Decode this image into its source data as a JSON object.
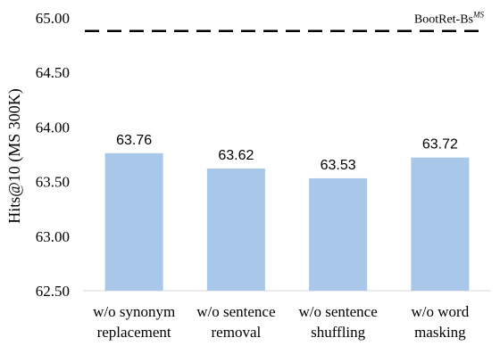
{
  "chart_data": {
    "type": "bar",
    "categories": [
      [
        "w/o synonym",
        "replacement"
      ],
      [
        "w/o sentence",
        "removal"
      ],
      [
        "w/o sentence",
        "shuffling"
      ],
      [
        "w/o word",
        "masking"
      ]
    ],
    "values": [
      63.76,
      63.62,
      63.53,
      63.72
    ],
    "value_labels": [
      "63.76",
      "63.62",
      "63.53",
      "63.72"
    ],
    "ylabel": "Hits@10 (MS 300K)",
    "ylim": [
      62.5,
      65.0
    ],
    "yticks": [
      "62.50",
      "63.00",
      "63.50",
      "64.00",
      "64.50",
      "65.00"
    ],
    "reference": {
      "label": "BootRet-Bs",
      "superscript": "MS",
      "value": 64.88,
      "style": "dashed"
    },
    "bar_color": "#a9c7e8",
    "grid": false
  }
}
